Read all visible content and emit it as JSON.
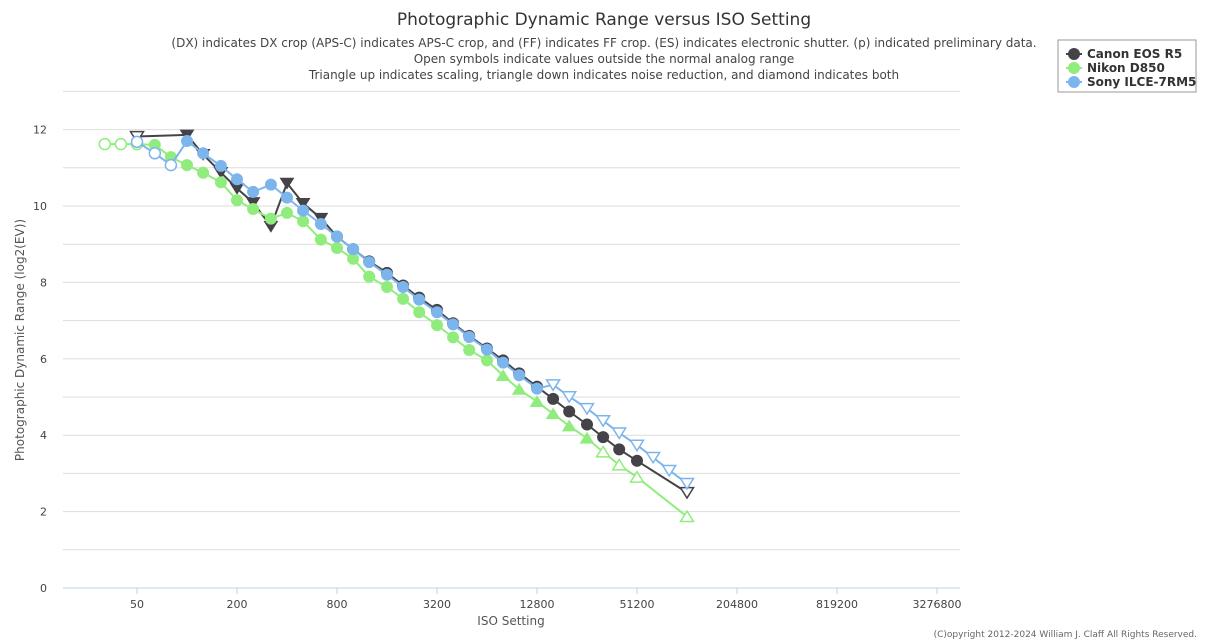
{
  "chart_data": {
    "type": "line",
    "title": "Photographic Dynamic Range versus ISO Setting",
    "subtitle": [
      "(DX) indicates DX crop (APS-C) indicates APS-C crop, and (FF) indicates FF crop. (ES) indicates electronic shutter. (p) indicated preliminary data.",
      "Open symbols indicate values outside the normal analog range",
      "Triangle up indicates scaling, triangle down indicates noise reduction, and diamond indicates both"
    ],
    "xlabel": "ISO Setting",
    "ylabel": "Photographic Dynamic Range (log2(EV))",
    "x_scale": "log2",
    "x_ticks": [
      "50",
      "200",
      "800",
      "3200",
      "12800",
      "51200",
      "204800",
      "819200",
      "3276800"
    ],
    "y_ticks": [
      "0",
      "2",
      "4",
      "6",
      "8",
      "10",
      "12"
    ],
    "ylim": [
      0,
      13
    ],
    "grid": true,
    "legend_position": "top-right",
    "credit": "(C)opyright 2012-2024 William J. Claff All Rights Reserved.",
    "series": [
      {
        "name": "Canon EOS R5",
        "color": "#434348",
        "points": [
          {
            "iso": 50,
            "dr": 11.82,
            "marker": "triangle-down",
            "open": true
          },
          {
            "iso": 100,
            "dr": 11.86,
            "marker": "triangle-down",
            "open": false
          },
          {
            "iso": 125,
            "dr": 11.35,
            "marker": "triangle-down",
            "open": false
          },
          {
            "iso": 160,
            "dr": 10.88,
            "marker": "triangle-down",
            "open": false
          },
          {
            "iso": 200,
            "dr": 10.46,
            "marker": "triangle-down",
            "open": false
          },
          {
            "iso": 250,
            "dr": 10.09,
            "marker": "triangle-down",
            "open": false
          },
          {
            "iso": 320,
            "dr": 9.47,
            "marker": "triangle-down",
            "open": false
          },
          {
            "iso": 400,
            "dr": 10.6,
            "marker": "triangle-down",
            "open": false
          },
          {
            "iso": 500,
            "dr": 10.07,
            "marker": "triangle-down",
            "open": false
          },
          {
            "iso": 640,
            "dr": 9.68,
            "marker": "triangle-down",
            "open": false
          },
          {
            "iso": 800,
            "dr": 9.2,
            "marker": "circle",
            "open": false
          },
          {
            "iso": 1000,
            "dr": 8.87,
            "marker": "circle",
            "open": false
          },
          {
            "iso": 1250,
            "dr": 8.55,
            "marker": "circle",
            "open": false
          },
          {
            "iso": 1600,
            "dr": 8.25,
            "marker": "circle",
            "open": false
          },
          {
            "iso": 2000,
            "dr": 7.92,
            "marker": "circle",
            "open": false
          },
          {
            "iso": 2500,
            "dr": 7.6,
            "marker": "circle",
            "open": false
          },
          {
            "iso": 3200,
            "dr": 7.28,
            "marker": "circle",
            "open": false
          },
          {
            "iso": 4000,
            "dr": 6.93,
            "marker": "circle",
            "open": false
          },
          {
            "iso": 5000,
            "dr": 6.6,
            "marker": "circle",
            "open": false
          },
          {
            "iso": 6400,
            "dr": 6.27,
            "marker": "circle",
            "open": false
          },
          {
            "iso": 8000,
            "dr": 5.96,
            "marker": "circle",
            "open": false
          },
          {
            "iso": 10000,
            "dr": 5.62,
            "marker": "circle",
            "open": false
          },
          {
            "iso": 12800,
            "dr": 5.27,
            "marker": "circle",
            "open": false
          },
          {
            "iso": 16000,
            "dr": 4.95,
            "marker": "circle",
            "open": false
          },
          {
            "iso": 20000,
            "dr": 4.62,
            "marker": "circle",
            "open": false
          },
          {
            "iso": 25600,
            "dr": 4.28,
            "marker": "circle",
            "open": false
          },
          {
            "iso": 32000,
            "dr": 3.95,
            "marker": "circle",
            "open": false
          },
          {
            "iso": 40000,
            "dr": 3.63,
            "marker": "circle",
            "open": false
          },
          {
            "iso": 51200,
            "dr": 3.33,
            "marker": "circle",
            "open": false
          },
          {
            "iso": 102400,
            "dr": 2.5,
            "marker": "triangle-down",
            "open": true
          }
        ]
      },
      {
        "name": "Nikon D850",
        "color": "#90ed7d",
        "points": [
          {
            "iso": 32,
            "dr": 11.62,
            "marker": "circle",
            "open": true
          },
          {
            "iso": 40,
            "dr": 11.62,
            "marker": "circle",
            "open": true
          },
          {
            "iso": 50,
            "dr": 11.62,
            "marker": "circle",
            "open": true
          },
          {
            "iso": 64,
            "dr": 11.6,
            "marker": "circle",
            "open": false
          },
          {
            "iso": 80,
            "dr": 11.28,
            "marker": "circle",
            "open": false
          },
          {
            "iso": 100,
            "dr": 11.07,
            "marker": "circle",
            "open": false
          },
          {
            "iso": 125,
            "dr": 10.87,
            "marker": "circle",
            "open": false
          },
          {
            "iso": 160,
            "dr": 10.62,
            "marker": "circle",
            "open": false
          },
          {
            "iso": 200,
            "dr": 10.15,
            "marker": "circle",
            "open": false
          },
          {
            "iso": 250,
            "dr": 9.92,
            "marker": "circle",
            "open": false
          },
          {
            "iso": 320,
            "dr": 9.67,
            "marker": "circle",
            "open": false
          },
          {
            "iso": 400,
            "dr": 9.82,
            "marker": "circle",
            "open": false
          },
          {
            "iso": 500,
            "dr": 9.6,
            "marker": "circle",
            "open": false
          },
          {
            "iso": 640,
            "dr": 9.12,
            "marker": "circle",
            "open": false
          },
          {
            "iso": 800,
            "dr": 8.9,
            "marker": "circle",
            "open": false
          },
          {
            "iso": 1000,
            "dr": 8.62,
            "marker": "circle",
            "open": false
          },
          {
            "iso": 1250,
            "dr": 8.15,
            "marker": "circle",
            "open": false
          },
          {
            "iso": 1600,
            "dr": 7.88,
            "marker": "circle",
            "open": false
          },
          {
            "iso": 2000,
            "dr": 7.57,
            "marker": "circle",
            "open": false
          },
          {
            "iso": 2500,
            "dr": 7.22,
            "marker": "circle",
            "open": false
          },
          {
            "iso": 3200,
            "dr": 6.88,
            "marker": "circle",
            "open": false
          },
          {
            "iso": 4000,
            "dr": 6.56,
            "marker": "circle",
            "open": false
          },
          {
            "iso": 5000,
            "dr": 6.23,
            "marker": "circle",
            "open": false
          },
          {
            "iso": 6400,
            "dr": 5.96,
            "marker": "circle",
            "open": false
          },
          {
            "iso": 8000,
            "dr": 5.56,
            "marker": "triangle-up",
            "open": false
          },
          {
            "iso": 10000,
            "dr": 5.2,
            "marker": "triangle-up",
            "open": false
          },
          {
            "iso": 12800,
            "dr": 4.88,
            "marker": "triangle-up",
            "open": false
          },
          {
            "iso": 16000,
            "dr": 4.56,
            "marker": "triangle-up",
            "open": false
          },
          {
            "iso": 20000,
            "dr": 4.24,
            "marker": "triangle-up",
            "open": false
          },
          {
            "iso": 25600,
            "dr": 3.92,
            "marker": "triangle-up",
            "open": false
          },
          {
            "iso": 32000,
            "dr": 3.56,
            "marker": "triangle-up",
            "open": true
          },
          {
            "iso": 40000,
            "dr": 3.22,
            "marker": "triangle-up",
            "open": true
          },
          {
            "iso": 51200,
            "dr": 2.9,
            "marker": "triangle-up",
            "open": true
          },
          {
            "iso": 102400,
            "dr": 1.87,
            "marker": "triangle-up",
            "open": true
          }
        ]
      },
      {
        "name": "Sony ILCE-7RM5",
        "color": "#7cb5ec",
        "points": [
          {
            "iso": 50,
            "dr": 11.68,
            "marker": "circle",
            "open": true
          },
          {
            "iso": 64,
            "dr": 11.38,
            "marker": "circle",
            "open": true
          },
          {
            "iso": 80,
            "dr": 11.07,
            "marker": "circle",
            "open": true
          },
          {
            "iso": 100,
            "dr": 11.7,
            "marker": "circle",
            "open": false
          },
          {
            "iso": 125,
            "dr": 11.38,
            "marker": "circle",
            "open": false
          },
          {
            "iso": 160,
            "dr": 11.05,
            "marker": "circle",
            "open": false
          },
          {
            "iso": 200,
            "dr": 10.7,
            "marker": "circle",
            "open": false
          },
          {
            "iso": 250,
            "dr": 10.37,
            "marker": "circle",
            "open": false
          },
          {
            "iso": 320,
            "dr": 10.56,
            "marker": "circle",
            "open": false
          },
          {
            "iso": 400,
            "dr": 10.22,
            "marker": "circle",
            "open": false
          },
          {
            "iso": 500,
            "dr": 9.88,
            "marker": "circle",
            "open": false
          },
          {
            "iso": 640,
            "dr": 9.53,
            "marker": "circle",
            "open": false
          },
          {
            "iso": 800,
            "dr": 9.2,
            "marker": "circle",
            "open": false
          },
          {
            "iso": 1000,
            "dr": 8.87,
            "marker": "circle",
            "open": false
          },
          {
            "iso": 1250,
            "dr": 8.53,
            "marker": "circle",
            "open": false
          },
          {
            "iso": 1600,
            "dr": 8.2,
            "marker": "circle",
            "open": false
          },
          {
            "iso": 2000,
            "dr": 7.88,
            "marker": "circle",
            "open": false
          },
          {
            "iso": 2500,
            "dr": 7.55,
            "marker": "circle",
            "open": false
          },
          {
            "iso": 3200,
            "dr": 7.22,
            "marker": "circle",
            "open": false
          },
          {
            "iso": 4000,
            "dr": 6.9,
            "marker": "circle",
            "open": false
          },
          {
            "iso": 5000,
            "dr": 6.57,
            "marker": "circle",
            "open": false
          },
          {
            "iso": 6400,
            "dr": 6.24,
            "marker": "circle",
            "open": false
          },
          {
            "iso": 8000,
            "dr": 5.9,
            "marker": "circle",
            "open": false
          },
          {
            "iso": 10000,
            "dr": 5.57,
            "marker": "circle",
            "open": false
          },
          {
            "iso": 12800,
            "dr": 5.22,
            "marker": "circle",
            "open": false
          },
          {
            "iso": 16000,
            "dr": 5.32,
            "marker": "triangle-down",
            "open": true
          },
          {
            "iso": 20000,
            "dr": 5.01,
            "marker": "triangle-down",
            "open": true
          },
          {
            "iso": 25600,
            "dr": 4.7,
            "marker": "triangle-down",
            "open": true
          },
          {
            "iso": 32000,
            "dr": 4.38,
            "marker": "triangle-down",
            "open": true
          },
          {
            "iso": 40000,
            "dr": 4.06,
            "marker": "triangle-down",
            "open": true
          },
          {
            "iso": 51200,
            "dr": 3.74,
            "marker": "triangle-down",
            "open": true
          },
          {
            "iso": 64000,
            "dr": 3.42,
            "marker": "triangle-down",
            "open": true
          },
          {
            "iso": 80000,
            "dr": 3.08,
            "marker": "triangle-down",
            "open": true
          },
          {
            "iso": 102400,
            "dr": 2.74,
            "marker": "triangle-down",
            "open": true
          }
        ]
      }
    ]
  }
}
